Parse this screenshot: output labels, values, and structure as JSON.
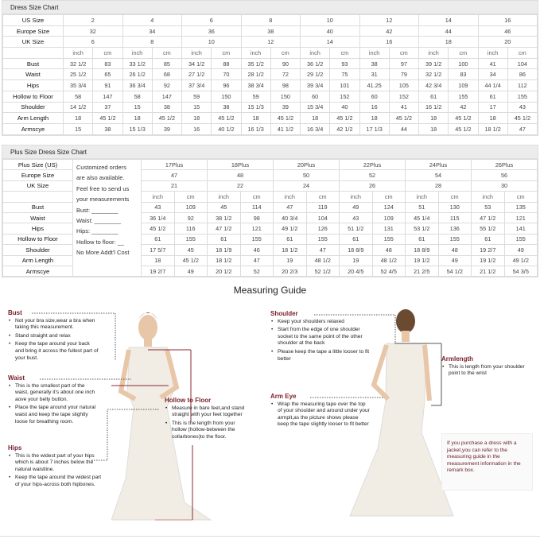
{
  "dress_chart": {
    "title": "Dress Size Chart",
    "us_label": "US Size",
    "eu_label": "Europe Size",
    "uk_label": "UK Size",
    "unit_inch": "inch",
    "unit_cm": "cm",
    "us": [
      "2",
      "4",
      "6",
      "8",
      "10",
      "12",
      "14",
      "16"
    ],
    "eu": [
      "32",
      "34",
      "36",
      "38",
      "40",
      "42",
      "44",
      "46"
    ],
    "uk": [
      "6",
      "8",
      "10",
      "12",
      "14",
      "16",
      "18",
      "20"
    ],
    "rows": [
      {
        "label": "Bust",
        "values": [
          "32 1/2",
          "83",
          "33 1/2",
          "85",
          "34 1/2",
          "88",
          "35 1/2",
          "90",
          "36 1/2",
          "93",
          "38",
          "97",
          "39 1/2",
          "100",
          "41",
          "104"
        ]
      },
      {
        "label": "Waist",
        "values": [
          "25 1/2",
          "65",
          "26 1/2",
          "68",
          "27 1/2",
          "70",
          "28 1/2",
          "72",
          "29 1/2",
          "75",
          "31",
          "79",
          "32 1/2",
          "83",
          "34",
          "86"
        ]
      },
      {
        "label": "Hips",
        "values": [
          "35 3/4",
          "91",
          "36 3/4",
          "92",
          "37 3/4",
          "96",
          "38 3/4",
          "98",
          "39 3/4",
          "101",
          "41.25",
          "105",
          "42 3/4",
          "109",
          "44 1/4",
          "112"
        ]
      },
      {
        "label": "Hollow to Floor",
        "values": [
          "58",
          "147",
          "58",
          "147",
          "59",
          "150",
          "59",
          "150",
          "60",
          "152",
          "60",
          "152",
          "61",
          "155",
          "61",
          "155"
        ]
      },
      {
        "label": "Shoulder",
        "values": [
          "14 1/2",
          "37",
          "15",
          "38",
          "15",
          "38",
          "15 1/3",
          "39",
          "15 3/4",
          "40",
          "16",
          "41",
          "16 1/2",
          "42",
          "17",
          "43"
        ]
      },
      {
        "label": "Arm Length",
        "values": [
          "18",
          "45 1/2",
          "18",
          "45 1/2",
          "18",
          "45 1/2",
          "18",
          "45 1/2",
          "18",
          "45 1/2",
          "18",
          "45 1/2",
          "18",
          "45 1/2",
          "18",
          "45 1/2"
        ]
      },
      {
        "label": "Armscye",
        "values": [
          "15",
          "38",
          "15 1/3",
          "39",
          "16",
          "40 1/2",
          "16 1/3",
          "41 1/2",
          "16 3/4",
          "42 1/2",
          "17 1/3",
          "44",
          "18",
          "45 1/2",
          "18 1/2",
          "47"
        ]
      }
    ]
  },
  "plus_chart": {
    "title": "Plus Size Dress Size Chart",
    "us_label": "Plus Size (US)",
    "eu_label": "Europe Size",
    "uk_label": "UK Size",
    "unit_inch": "inch",
    "unit_cm": "cm",
    "notes": [
      "Customized orders",
      "are also available.",
      "Feel free to send us",
      "your measurements",
      "Bust: ________",
      "Waist: ________",
      "Hips: ________",
      "Hollow to floor: __",
      "No More Addt'l Cost"
    ],
    "us": [
      "17Plus",
      "18Plus",
      "20Plus",
      "22Plus",
      "24Plus",
      "26Plus"
    ],
    "eu": [
      "47",
      "48",
      "50",
      "52",
      "54",
      "56"
    ],
    "uk": [
      "21",
      "22",
      "24",
      "26",
      "28",
      "30"
    ],
    "rows": [
      {
        "label": "Bust",
        "values": [
          "43",
          "109",
          "45",
          "114",
          "47",
          "119",
          "49",
          "124",
          "51",
          "130",
          "53",
          "135"
        ]
      },
      {
        "label": "Waist",
        "values": [
          "36 1/4",
          "92",
          "38 1/2",
          "98",
          "40 3/4",
          "104",
          "43",
          "109",
          "45 1/4",
          "115",
          "47 1/2",
          "121"
        ]
      },
      {
        "label": "Hips",
        "values": [
          "45 1/2",
          "116",
          "47 1/2",
          "121",
          "49 1/2",
          "126",
          "51 1/2",
          "131",
          "53 1/2",
          "136",
          "55 1/2",
          "141"
        ]
      },
      {
        "label": "Hollow to Floor",
        "values": [
          "61",
          "155",
          "61",
          "155",
          "61",
          "155",
          "61",
          "155",
          "61",
          "155",
          "61",
          "155"
        ]
      },
      {
        "label": "Shoulder",
        "values": [
          "17 5/7",
          "45",
          "18 1/9",
          "46",
          "18 1/2",
          "47",
          "18 8/9",
          "48",
          "18 8/9",
          "48",
          "19 2/7",
          "49"
        ]
      },
      {
        "label": "Arm Length",
        "values": [
          "18",
          "45 1/2",
          "18 1/2",
          "47",
          "19",
          "48 1/2",
          "19",
          "48 1/2",
          "19 1/2",
          "49",
          "19 1/2",
          "49 1/2"
        ]
      },
      {
        "label": "Armscye",
        "values": [
          "19 2/7",
          "49",
          "20 1/2",
          "52",
          "20 2/3",
          "52 1/2",
          "20 4/5",
          "52 4/5",
          "21 2/5",
          "54 1/2",
          "21 1/2",
          "54 3/5"
        ]
      }
    ]
  },
  "guide": {
    "title": "Measuring Guide",
    "bust": {
      "title": "Bust",
      "items": [
        "Not your bra size,wear a bra when taking this measurement.",
        "Stand straight and relax",
        "Keep the tape around your back and bring it across the fullest part of your bust."
      ]
    },
    "waist": {
      "title": "Waist",
      "items": [
        "This is the smallest part of the waist, generally it's about one inch aove your belly button.",
        "Place the tape around your natural waist and keep the tape slightly loose for breathing room."
      ]
    },
    "hips": {
      "title": "Hips",
      "items": [
        "This is the widest part of your hips which is about 7 inches below the natural waistline.",
        "Keep the tape around the widest part of your hips-across both hipbones."
      ]
    },
    "hollow": {
      "title": "Hollow to Floor",
      "items": [
        "Measure in bare feet,and stand straight with your feet together",
        "This is the length from your hollow (hollow-between the collarbones)to the floor."
      ]
    },
    "shoulder": {
      "title": "Shoulder",
      "items": [
        "Keep your shoulders relaxed",
        "Start from the edge of one shoulder socket to the same point of the other shoulder at the back",
        "Please keep the tape a little looser to fit better"
      ]
    },
    "armeye": {
      "title": "Arm Eye",
      "items": [
        "Wrap the measuring tape over the top of your shoulder and around under your armpit,as the picture shows please keep the tape slightly looser to fit better"
      ]
    },
    "armlength": {
      "title": "Armlength",
      "items": [
        "This is length from your shoulder point to the wrist"
      ]
    },
    "note": "If you purchase a dress with a jacket,you can refer to the measuring guide in the measurement information in the remark box."
  },
  "colors": {
    "heading": "#7a1f2b",
    "header_bg": "#ececec",
    "grid": "#dcdcdc"
  }
}
